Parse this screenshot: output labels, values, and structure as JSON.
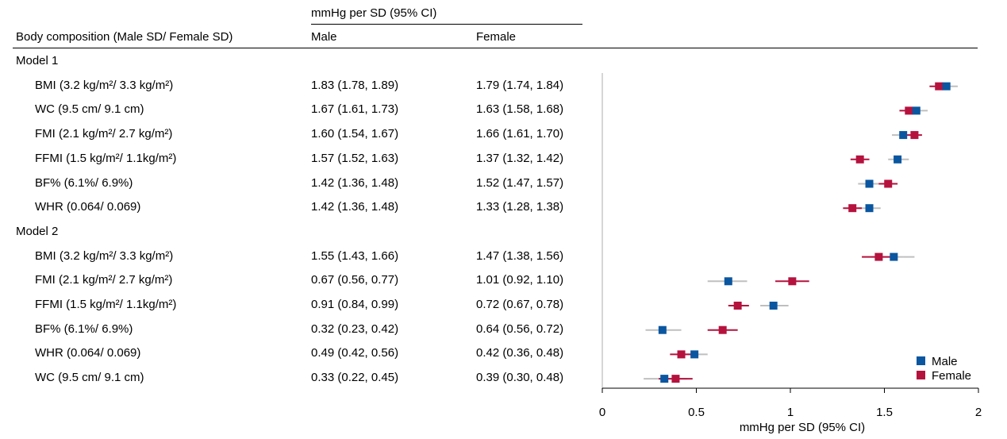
{
  "header": {
    "group_label": "mmHg per SD (95% CI)",
    "col_label": "Body composition (Male SD/ Female SD)",
    "male_label": "Male",
    "female_label": "Female"
  },
  "colors": {
    "male": "#0a56a0",
    "female": "#b5123e",
    "ci_male": "#bfbfbf",
    "ci_female": "#b5123e",
    "axis": "#000000",
    "refline": "#c8c8c8"
  },
  "chart_data": {
    "type": "forest",
    "xlabel": "mmHg per SD (95% CI)",
    "xlim": [
      0,
      2
    ],
    "xticks": [
      "0",
      "0.5",
      "1",
      "1.5",
      "2"
    ],
    "legend": {
      "position": "bottom-right",
      "entries": [
        "Male",
        "Female"
      ]
    },
    "groups": [
      {
        "name": "Model 1",
        "rows": [
          {
            "label": "BMI (3.2 kg/m²/ 3.3 kg/m²)",
            "male": {
              "est": 1.83,
              "lo": 1.78,
              "hi": 1.89,
              "text": "1.83 (1.78, 1.89)"
            },
            "female": {
              "est": 1.79,
              "lo": 1.74,
              "hi": 1.84,
              "text": "1.79 (1.74, 1.84)"
            }
          },
          {
            "label": "WC (9.5 cm/ 9.1 cm)",
            "male": {
              "est": 1.67,
              "lo": 1.61,
              "hi": 1.73,
              "text": "1.67 (1.61, 1.73)"
            },
            "female": {
              "est": 1.63,
              "lo": 1.58,
              "hi": 1.68,
              "text": "1.63 (1.58, 1.68)"
            }
          },
          {
            "label": "FMI (2.1 kg/m²/ 2.7 kg/m²)",
            "male": {
              "est": 1.6,
              "lo": 1.54,
              "hi": 1.67,
              "text": "1.60 (1.54, 1.67)"
            },
            "female": {
              "est": 1.66,
              "lo": 1.61,
              "hi": 1.7,
              "text": "1.66 (1.61, 1.70)"
            }
          },
          {
            "label": "FFMI (1.5 kg/m²/ 1.1kg/m²)",
            "male": {
              "est": 1.57,
              "lo": 1.52,
              "hi": 1.63,
              "text": "1.57 (1.52, 1.63)"
            },
            "female": {
              "est": 1.37,
              "lo": 1.32,
              "hi": 1.42,
              "text": "1.37 (1.32, 1.42)"
            }
          },
          {
            "label": "BF% (6.1%/ 6.9%)",
            "male": {
              "est": 1.42,
              "lo": 1.36,
              "hi": 1.48,
              "text": "1.42 (1.36, 1.48)"
            },
            "female": {
              "est": 1.52,
              "lo": 1.47,
              "hi": 1.57,
              "text": "1.52 (1.47, 1.57)"
            }
          },
          {
            "label": "WHR (0.064/ 0.069)",
            "male": {
              "est": 1.42,
              "lo": 1.36,
              "hi": 1.48,
              "text": "1.42 (1.36, 1.48)"
            },
            "female": {
              "est": 1.33,
              "lo": 1.28,
              "hi": 1.38,
              "text": "1.33 (1.28, 1.38)"
            }
          }
        ]
      },
      {
        "name": "Model 2",
        "rows": [
          {
            "label": "BMI (3.2 kg/m²/ 3.3 kg/m²)",
            "male": {
              "est": 1.55,
              "lo": 1.43,
              "hi": 1.66,
              "text": "1.55 (1.43, 1.66)"
            },
            "female": {
              "est": 1.47,
              "lo": 1.38,
              "hi": 1.56,
              "text": "1.47 (1.38, 1.56)"
            }
          },
          {
            "label": "FMI (2.1 kg/m²/ 2.7 kg/m²)",
            "male": {
              "est": 0.67,
              "lo": 0.56,
              "hi": 0.77,
              "text": "0.67 (0.56, 0.77)"
            },
            "female": {
              "est": 1.01,
              "lo": 0.92,
              "hi": 1.1,
              "text": "1.01 (0.92, 1.10)"
            }
          },
          {
            "label": "FFMI (1.5 kg/m²/ 1.1kg/m²)",
            "male": {
              "est": 0.91,
              "lo": 0.84,
              "hi": 0.99,
              "text": "0.91 (0.84, 0.99)"
            },
            "female": {
              "est": 0.72,
              "lo": 0.67,
              "hi": 0.78,
              "text": "0.72 (0.67, 0.78)"
            }
          },
          {
            "label": "BF% (6.1%/ 6.9%)",
            "male": {
              "est": 0.32,
              "lo": 0.23,
              "hi": 0.42,
              "text": "0.32 (0.23, 0.42)"
            },
            "female": {
              "est": 0.64,
              "lo": 0.56,
              "hi": 0.72,
              "text": "0.64 (0.56, 0.72)"
            }
          },
          {
            "label": "WHR (0.064/ 0.069)",
            "male": {
              "est": 0.49,
              "lo": 0.42,
              "hi": 0.56,
              "text": "0.49 (0.42, 0.56)"
            },
            "female": {
              "est": 0.42,
              "lo": 0.36,
              "hi": 0.48,
              "text": "0.42 (0.36, 0.48)"
            }
          },
          {
            "label": "WC (9.5 cm/ 9.1 cm)",
            "male": {
              "est": 0.33,
              "lo": 0.22,
              "hi": 0.45,
              "text": "0.33 (0.22, 0.45)"
            },
            "female": {
              "est": 0.39,
              "lo": 0.3,
              "hi": 0.48,
              "text": "0.39 (0.30, 0.48)"
            }
          }
        ]
      }
    ]
  }
}
